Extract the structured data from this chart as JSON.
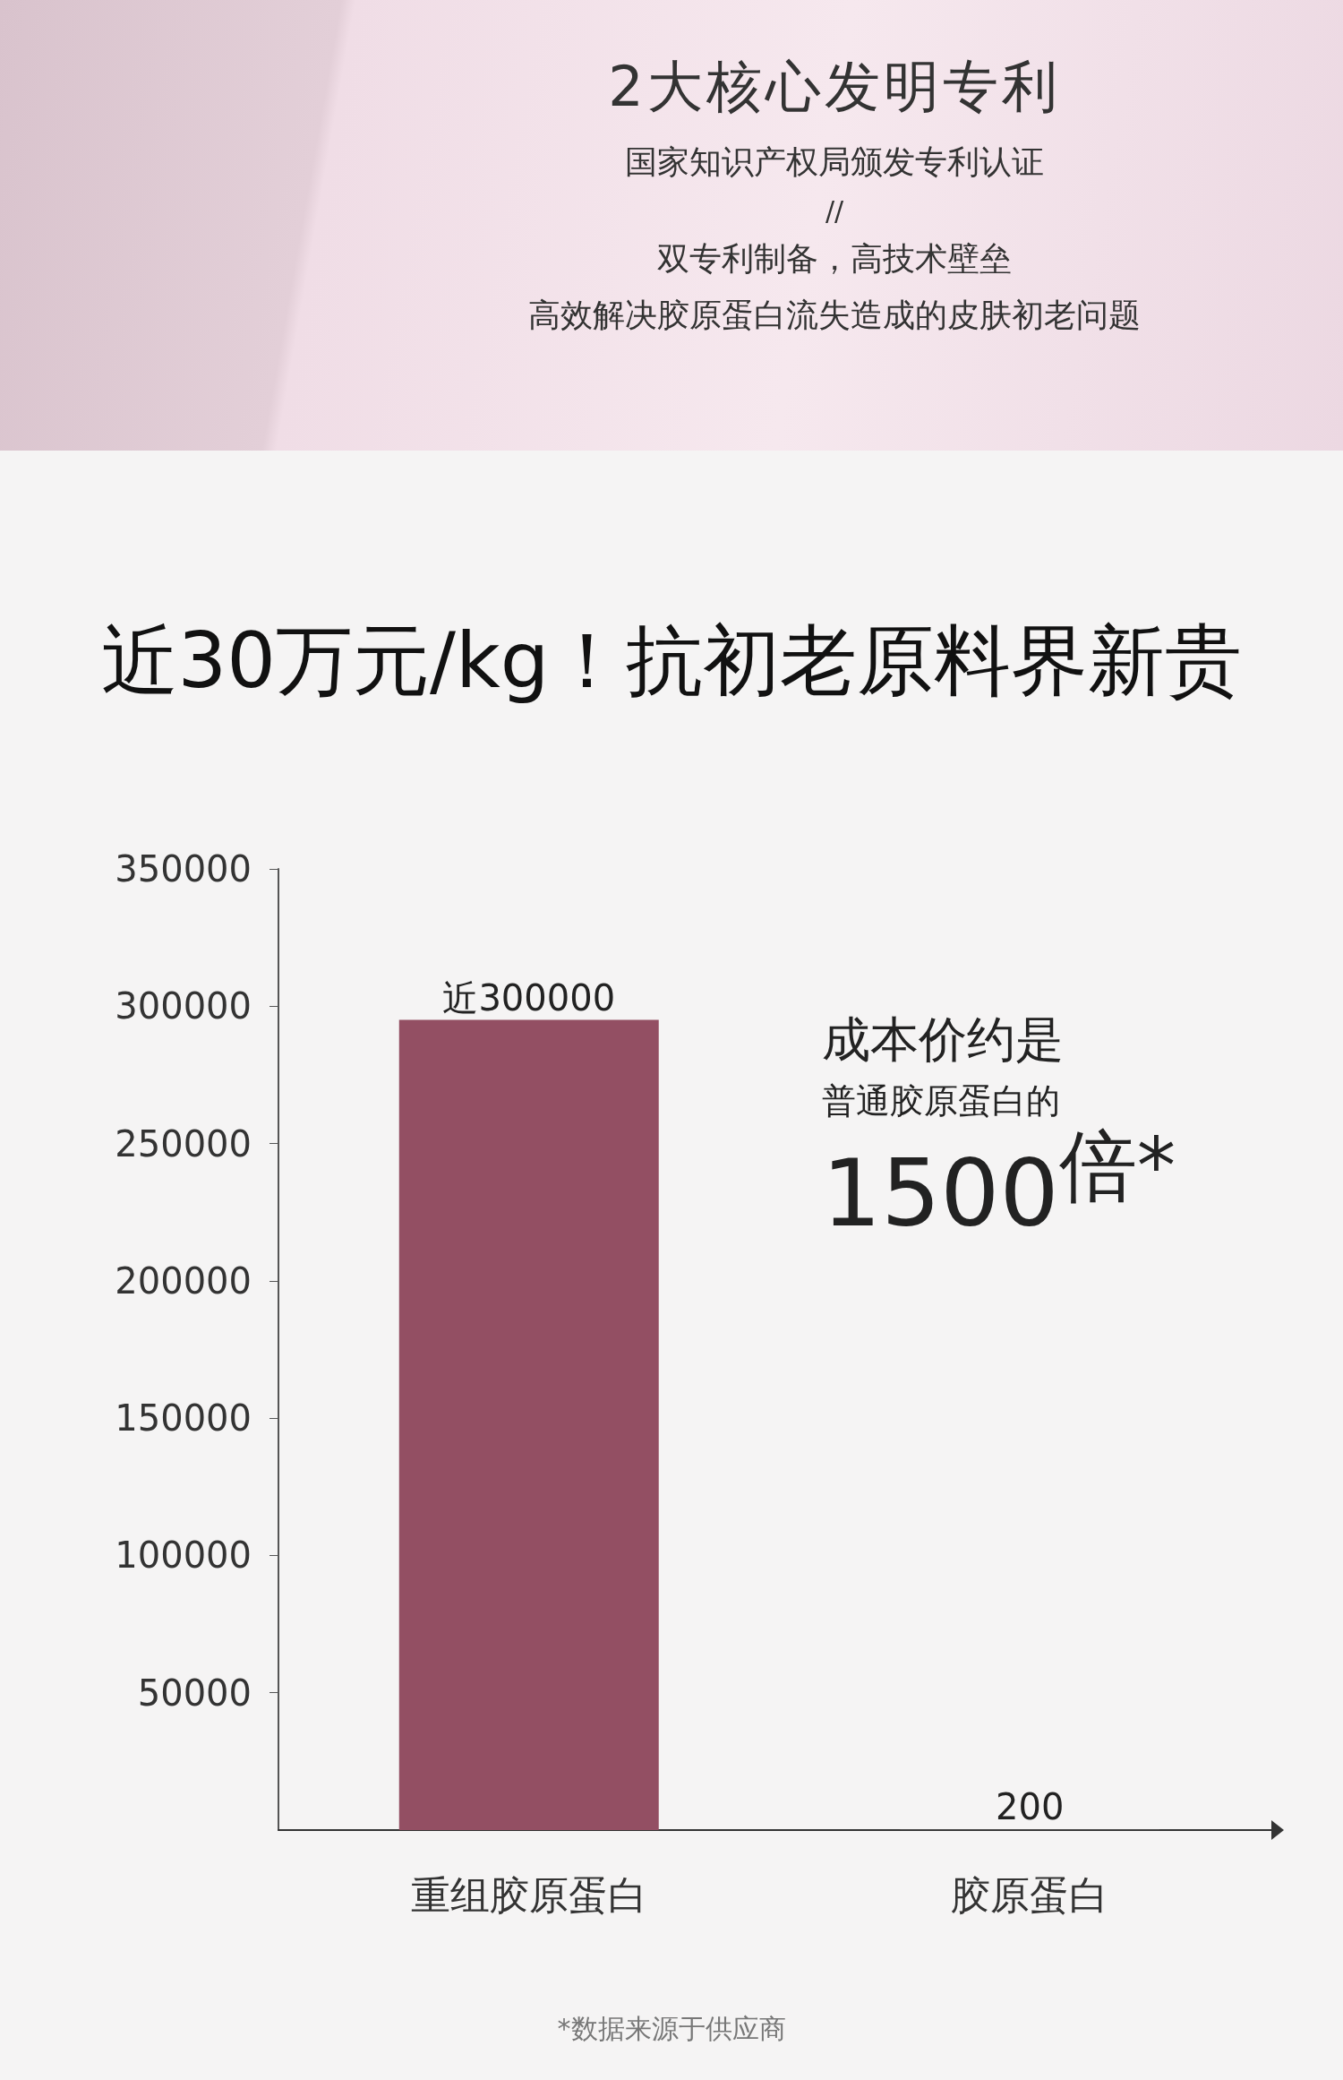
{
  "chart_data": {
    "type": "bar",
    "title": "近30万元/kg！抗初老原料界新贵",
    "annotations": [
      "2大核心发明专利",
      "国家知识产权局颁发专利认证",
      "//",
      "双专利制备，高技术壁垒",
      "高效解决胶原蛋白流失造成的皮肤初老问题",
      "成本价约是",
      "普通胶原蛋白的",
      "1500$^{倍*}$",
      "*数据来源于供应商"
    ],
    "categories": [
      "重组胶原蛋白",
      "胶原蛋白"
    ],
    "values": [
      295000,
      200
    ],
    "colors": [
      "#934f63",
      "#555555"
    ],
    "value_labels": [
      "近300000",
      "200"
    ],
    "ylim": [
      0,
      350000
    ],
    "yticks": [
      50000,
      100000,
      150000,
      200000,
      250000,
      300000,
      350000
    ],
    "grid": false
  }
}
